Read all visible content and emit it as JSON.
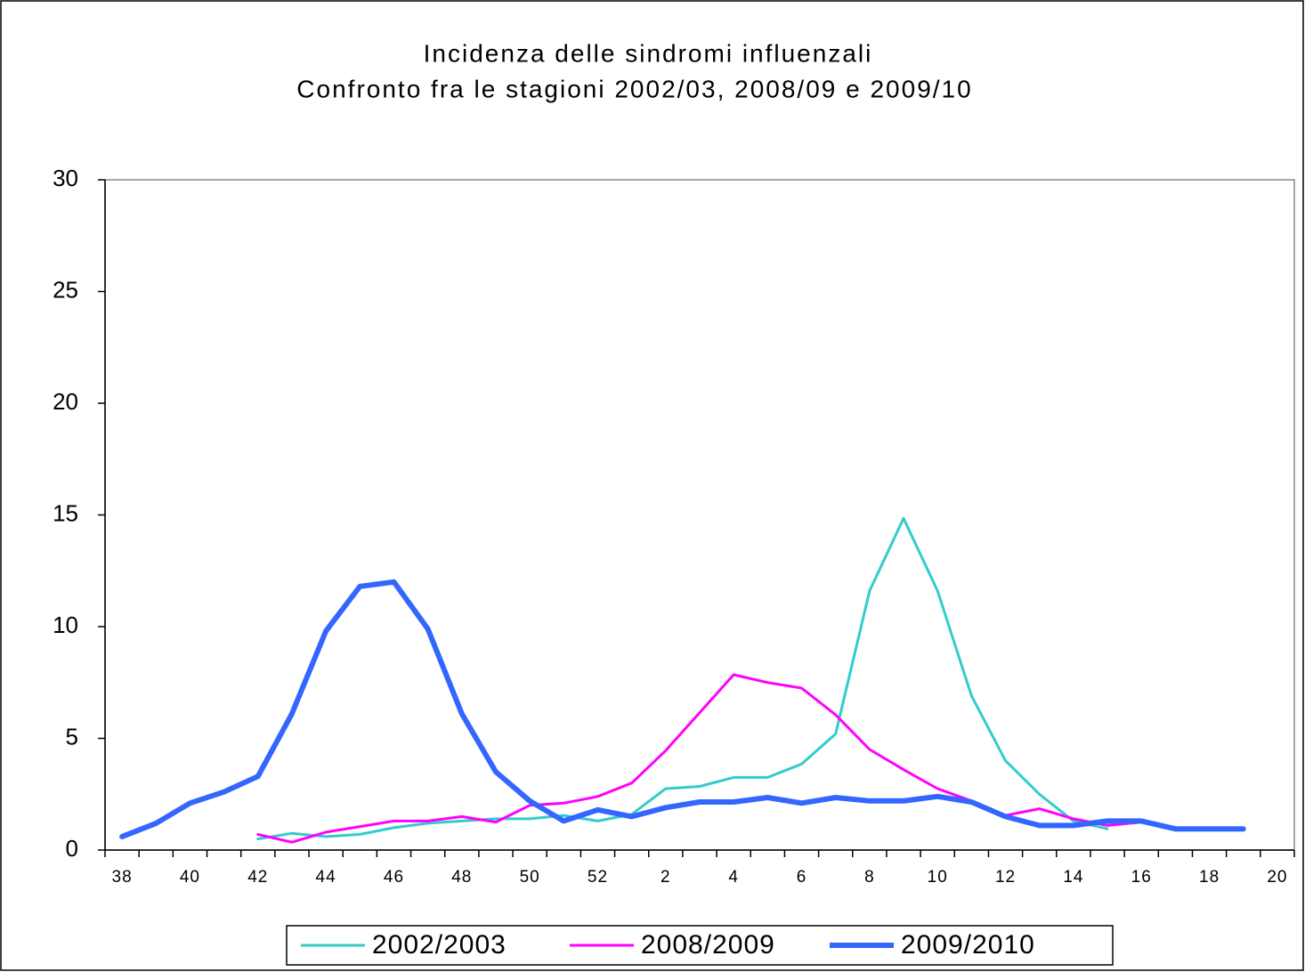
{
  "chart_data": {
    "type": "line",
    "title": "Incidenza delle sindromi influenzali",
    "subtitle": "Confronto fra le stagioni 2002/03, 2008/09 e 2009/10",
    "categories": [
      "38",
      null,
      "40",
      null,
      "42",
      null,
      "44",
      null,
      "46",
      null,
      "48",
      null,
      "50",
      null,
      "52",
      null,
      "2",
      null,
      "4",
      null,
      "6",
      null,
      "8",
      null,
      "10",
      null,
      "12",
      null,
      "14",
      null,
      "16",
      null,
      "18",
      null,
      "20"
    ],
    "series": [
      {
        "name": "2002/2003",
        "color": "#33cccc",
        "width": 3,
        "values": [
          null,
          null,
          null,
          null,
          0.5,
          0.75,
          0.6,
          0.7,
          1.0,
          1.2,
          1.3,
          1.4,
          1.4,
          1.55,
          1.3,
          1.6,
          2.75,
          2.85,
          3.25,
          3.25,
          3.85,
          5.2,
          11.6,
          14.85,
          11.6,
          6.9,
          4.0,
          2.5,
          1.3,
          0.95,
          null,
          null,
          null,
          null,
          null
        ]
      },
      {
        "name": "2008/2009",
        "color": "#ff00ff",
        "width": 3,
        "values": [
          null,
          null,
          null,
          null,
          0.7,
          0.35,
          0.8,
          1.05,
          1.3,
          1.3,
          1.5,
          1.25,
          2.0,
          2.1,
          2.4,
          3.0,
          4.45,
          6.15,
          7.85,
          7.5,
          7.25,
          6.05,
          4.5,
          3.6,
          2.75,
          2.2,
          1.55,
          1.85,
          1.4,
          1.1,
          1.25,
          0.9,
          null,
          null,
          null
        ]
      },
      {
        "name": "2009/2010",
        "color": "#3366ff",
        "width": 6,
        "values": [
          0.6,
          1.2,
          2.1,
          2.6,
          3.3,
          6.1,
          9.8,
          11.8,
          12.0,
          9.9,
          6.1,
          3.5,
          2.2,
          1.3,
          1.8,
          1.5,
          1.9,
          2.15,
          2.15,
          2.35,
          2.1,
          2.35,
          2.2,
          2.2,
          2.4,
          2.15,
          1.5,
          1.1,
          1.1,
          1.3,
          1.3,
          0.95,
          0.95,
          0.95,
          null
        ]
      }
    ],
    "ylim": [
      0,
      30
    ],
    "yticks": [
      0,
      5,
      10,
      15,
      20,
      25,
      30
    ],
    "grid": false,
    "legend": "bottom"
  }
}
